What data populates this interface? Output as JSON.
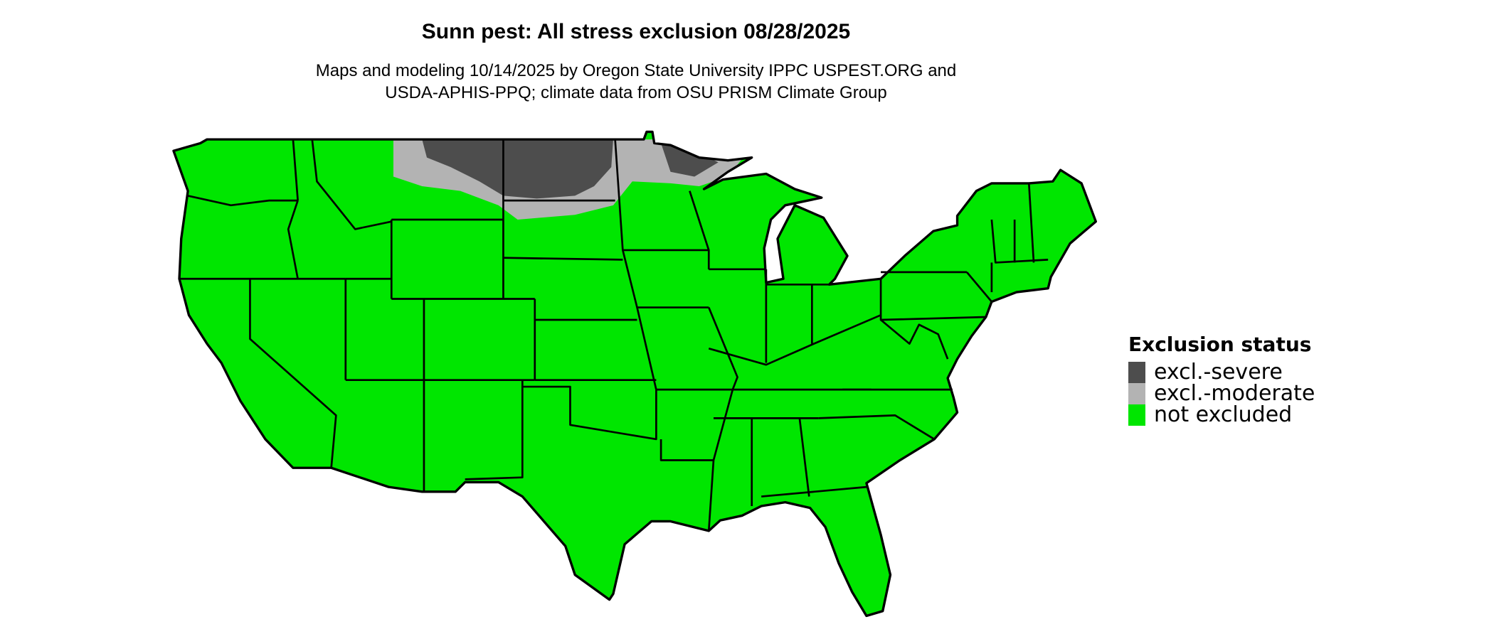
{
  "title": "Sunn pest: All stress exclusion 08/28/2025",
  "subtitle_lines": [
    "Maps and modeling 10/14/2025 by Oregon State University IPPC USPEST.ORG and",
    "USDA-APHIS-PPQ; climate data from OSU PRISM Climate Group"
  ],
  "legend": {
    "title": "Exclusion status",
    "items": [
      {
        "label": "excl.-severe",
        "color": "#4d4d4d"
      },
      {
        "label": "excl.-moderate",
        "color": "#b3b3b3"
      },
      {
        "label": "not excluded",
        "color": "#00e600"
      }
    ]
  },
  "map": {
    "region": "conterminous United States",
    "fill_colors": {
      "severe": "#4d4d4d",
      "moderate": "#b3b3b3",
      "not_excluded": "#00e600"
    }
  }
}
